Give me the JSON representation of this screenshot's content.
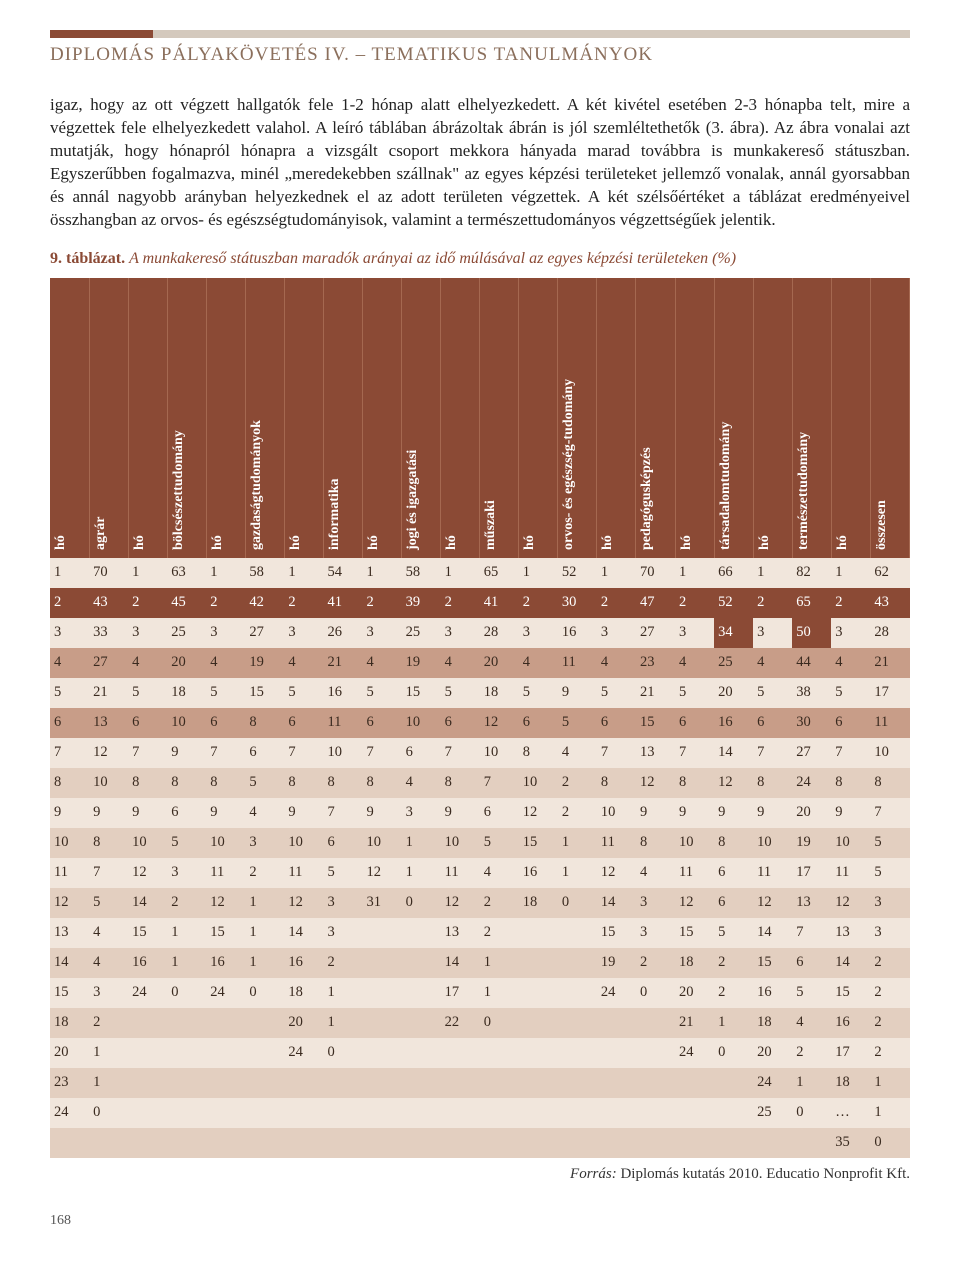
{
  "header": "DIPLOMÁS PÁLYAKÖVETÉS IV. – TEMATIKUS TANULMÁNYOK",
  "paragraph": "igaz, hogy az ott végzett hallgatók fele 1-2 hónap alatt elhelyezkedett. A két kivétel esetében 2-3 hónapba telt, mire a végzettek fele elhelyezkedett valahol. A leíró táblában ábrázoltak ábrán is jól szemléltethetők (3. ábra). Az ábra vonalai azt mutatják, hogy hónapról hónapra a vizsgált csoport mekkora hányada marad továbbra is munkakereső státuszban. Egyszerűbben fogalmazva, minél „meredekebben szállnak\" az egyes képzési területeket jellemző vonalak, annál gyorsabban és annál nagyobb arányban helyezkednek el az adott területen végzettek. A két szélsőértéket a táblázat eredményeivel összhangban az orvos- és egészségtudományisok, valamint a természettudományos végzettségűek jelentik.",
  "caption_num": "9. táblázat.",
  "caption_title": "A munkakereső státuszban maradók arányai az idő múlásával az egyes képzési területeken (%)",
  "columns": [
    "hó",
    "agrár",
    "hó",
    "bölcsészettudomány",
    "hó",
    "gazdaságtudományok",
    "hó",
    "informatika",
    "hó",
    "jogi és igazgatási",
    "hó",
    "műszaki",
    "hó",
    "orvos- és egészség-tudomány",
    "hó",
    "pedagógusképzés",
    "hó",
    "társadalomtudomány",
    "hó",
    "természettudomány",
    "hó",
    "összesen"
  ],
  "palette": {
    "dark": "#8b4a35",
    "mid": "#c89d88",
    "light": "#e3cfc0",
    "pale": "#f1e6dc"
  },
  "rows": [
    {
      "cells": [
        "1",
        "70",
        "1",
        "63",
        "1",
        "58",
        "1",
        "54",
        "1",
        "58",
        "1",
        "65",
        "1",
        "52",
        "1",
        "70",
        "1",
        "66",
        "1",
        "82",
        "1",
        "62"
      ],
      "shades": [
        "p",
        "p",
        "p",
        "p",
        "p",
        "p",
        "p",
        "p",
        "p",
        "p",
        "p",
        "p",
        "p",
        "p",
        "p",
        "p",
        "p",
        "p",
        "p",
        "p",
        "p",
        "p"
      ]
    },
    {
      "cells": [
        "2",
        "43",
        "2",
        "45",
        "2",
        "42",
        "2",
        "41",
        "2",
        "39",
        "2",
        "41",
        "2",
        "30",
        "2",
        "47",
        "2",
        "52",
        "2",
        "65",
        "2",
        "43"
      ],
      "shades": [
        "d",
        "d",
        "d",
        "d",
        "d",
        "d",
        "d",
        "d",
        "d",
        "d",
        "d",
        "d",
        "d",
        "d",
        "d",
        "d",
        "d",
        "d",
        "d",
        "d",
        "d",
        "d"
      ]
    },
    {
      "cells": [
        "3",
        "33",
        "3",
        "25",
        "3",
        "27",
        "3",
        "26",
        "3",
        "25",
        "3",
        "28",
        "3",
        "16",
        "3",
        "27",
        "3",
        "34",
        "3",
        "50",
        "3",
        "28"
      ],
      "shades": [
        "p",
        "p",
        "p",
        "p",
        "p",
        "p",
        "p",
        "p",
        "p",
        "p",
        "p",
        "p",
        "p",
        "p",
        "p",
        "p",
        "p",
        "d",
        "p",
        "d",
        "p",
        "p"
      ]
    },
    {
      "cells": [
        "4",
        "27",
        "4",
        "20",
        "4",
        "19",
        "4",
        "21",
        "4",
        "19",
        "4",
        "20",
        "4",
        "11",
        "4",
        "23",
        "4",
        "25",
        "4",
        "44",
        "4",
        "21"
      ],
      "shades": [
        "m",
        "m",
        "m",
        "m",
        "m",
        "m",
        "m",
        "m",
        "m",
        "m",
        "m",
        "m",
        "m",
        "m",
        "m",
        "m",
        "m",
        "m",
        "m",
        "m",
        "m",
        "m"
      ]
    },
    {
      "cells": [
        "5",
        "21",
        "5",
        "18",
        "5",
        "15",
        "5",
        "16",
        "5",
        "15",
        "5",
        "18",
        "5",
        "9",
        "5",
        "21",
        "5",
        "20",
        "5",
        "38",
        "5",
        "17"
      ],
      "shades": [
        "p",
        "p",
        "p",
        "p",
        "p",
        "p",
        "p",
        "p",
        "p",
        "p",
        "p",
        "p",
        "p",
        "p",
        "p",
        "p",
        "p",
        "p",
        "p",
        "p",
        "p",
        "p"
      ]
    },
    {
      "cells": [
        "6",
        "13",
        "6",
        "10",
        "6",
        "8",
        "6",
        "11",
        "6",
        "10",
        "6",
        "12",
        "6",
        "5",
        "6",
        "15",
        "6",
        "16",
        "6",
        "30",
        "6",
        "11"
      ],
      "shades": [
        "m",
        "m",
        "m",
        "m",
        "m",
        "m",
        "m",
        "m",
        "m",
        "m",
        "m",
        "m",
        "m",
        "m",
        "m",
        "m",
        "m",
        "m",
        "m",
        "m",
        "m",
        "m"
      ]
    },
    {
      "cells": [
        "7",
        "12",
        "7",
        "9",
        "7",
        "6",
        "7",
        "10",
        "7",
        "6",
        "7",
        "10",
        "8",
        "4",
        "7",
        "13",
        "7",
        "14",
        "7",
        "27",
        "7",
        "10"
      ],
      "shades": [
        "p",
        "p",
        "p",
        "p",
        "p",
        "p",
        "p",
        "p",
        "p",
        "p",
        "p",
        "p",
        "p",
        "p",
        "p",
        "p",
        "p",
        "p",
        "p",
        "p",
        "p",
        "p"
      ]
    },
    {
      "cells": [
        "8",
        "10",
        "8",
        "8",
        "8",
        "5",
        "8",
        "8",
        "8",
        "4",
        "8",
        "7",
        "10",
        "2",
        "8",
        "12",
        "8",
        "12",
        "8",
        "24",
        "8",
        "8"
      ],
      "shades": [
        "l",
        "l",
        "l",
        "l",
        "l",
        "l",
        "l",
        "l",
        "l",
        "l",
        "l",
        "l",
        "l",
        "l",
        "l",
        "l",
        "l",
        "l",
        "l",
        "l",
        "l",
        "l"
      ]
    },
    {
      "cells": [
        "9",
        "9",
        "9",
        "6",
        "9",
        "4",
        "9",
        "7",
        "9",
        "3",
        "9",
        "6",
        "12",
        "2",
        "10",
        "9",
        "9",
        "9",
        "9",
        "20",
        "9",
        "7"
      ],
      "shades": [
        "p",
        "p",
        "p",
        "p",
        "p",
        "p",
        "p",
        "p",
        "p",
        "p",
        "p",
        "p",
        "p",
        "p",
        "p",
        "p",
        "p",
        "p",
        "p",
        "p",
        "p",
        "p"
      ]
    },
    {
      "cells": [
        "10",
        "8",
        "10",
        "5",
        "10",
        "3",
        "10",
        "6",
        "10",
        "1",
        "10",
        "5",
        "15",
        "1",
        "11",
        "8",
        "10",
        "8",
        "10",
        "19",
        "10",
        "5"
      ],
      "shades": [
        "l",
        "l",
        "l",
        "l",
        "l",
        "l",
        "l",
        "l",
        "l",
        "l",
        "l",
        "l",
        "l",
        "l",
        "l",
        "l",
        "l",
        "l",
        "l",
        "l",
        "l",
        "l"
      ]
    },
    {
      "cells": [
        "11",
        "7",
        "12",
        "3",
        "11",
        "2",
        "11",
        "5",
        "12",
        "1",
        "11",
        "4",
        "16",
        "1",
        "12",
        "4",
        "11",
        "6",
        "11",
        "17",
        "11",
        "5"
      ],
      "shades": [
        "p",
        "p",
        "p",
        "p",
        "p",
        "p",
        "p",
        "p",
        "p",
        "p",
        "p",
        "p",
        "p",
        "p",
        "p",
        "p",
        "p",
        "p",
        "p",
        "p",
        "p",
        "p"
      ]
    },
    {
      "cells": [
        "12",
        "5",
        "14",
        "2",
        "12",
        "1",
        "12",
        "3",
        "31",
        "0",
        "12",
        "2",
        "18",
        "0",
        "14",
        "3",
        "12",
        "6",
        "12",
        "13",
        "12",
        "3"
      ],
      "shades": [
        "l",
        "l",
        "l",
        "l",
        "l",
        "l",
        "l",
        "l",
        "l",
        "l",
        "l",
        "l",
        "l",
        "l",
        "l",
        "l",
        "l",
        "l",
        "l",
        "l",
        "l",
        "l"
      ]
    },
    {
      "cells": [
        "13",
        "4",
        "15",
        "1",
        "15",
        "1",
        "14",
        "3",
        "",
        "",
        "13",
        "2",
        "",
        "",
        "15",
        "3",
        "15",
        "5",
        "14",
        "7",
        "13",
        "3"
      ],
      "shades": [
        "p",
        "p",
        "p",
        "p",
        "p",
        "p",
        "p",
        "p",
        "p",
        "p",
        "p",
        "p",
        "p",
        "p",
        "p",
        "p",
        "p",
        "p",
        "p",
        "p",
        "p",
        "p"
      ]
    },
    {
      "cells": [
        "14",
        "4",
        "16",
        "1",
        "16",
        "1",
        "16",
        "2",
        "",
        "",
        "14",
        "1",
        "",
        "",
        "19",
        "2",
        "18",
        "2",
        "15",
        "6",
        "14",
        "2"
      ],
      "shades": [
        "l",
        "l",
        "l",
        "l",
        "l",
        "l",
        "l",
        "l",
        "l",
        "l",
        "l",
        "l",
        "l",
        "l",
        "l",
        "l",
        "l",
        "l",
        "l",
        "l",
        "l",
        "l"
      ]
    },
    {
      "cells": [
        "15",
        "3",
        "24",
        "0",
        "24",
        "0",
        "18",
        "1",
        "",
        "",
        "17",
        "1",
        "",
        "",
        "24",
        "0",
        "20",
        "2",
        "16",
        "5",
        "15",
        "2"
      ],
      "shades": [
        "p",
        "p",
        "p",
        "p",
        "p",
        "p",
        "p",
        "p",
        "p",
        "p",
        "p",
        "p",
        "p",
        "p",
        "p",
        "p",
        "p",
        "p",
        "p",
        "p",
        "p",
        "p"
      ]
    },
    {
      "cells": [
        "18",
        "2",
        "",
        "",
        "",
        "",
        "20",
        "1",
        "",
        "",
        "22",
        "0",
        "",
        "",
        "",
        "",
        "21",
        "1",
        "18",
        "4",
        "16",
        "2"
      ],
      "shades": [
        "l",
        "l",
        "l",
        "l",
        "l",
        "l",
        "l",
        "l",
        "l",
        "l",
        "l",
        "l",
        "l",
        "l",
        "l",
        "l",
        "l",
        "l",
        "l",
        "l",
        "l",
        "l"
      ]
    },
    {
      "cells": [
        "20",
        "1",
        "",
        "",
        "",
        "",
        "24",
        "0",
        "",
        "",
        "",
        "",
        "",
        "",
        "",
        "",
        "24",
        "0",
        "20",
        "2",
        "17",
        "2"
      ],
      "shades": [
        "p",
        "p",
        "p",
        "p",
        "p",
        "p",
        "p",
        "p",
        "p",
        "p",
        "p",
        "p",
        "p",
        "p",
        "p",
        "p",
        "p",
        "p",
        "p",
        "p",
        "p",
        "p"
      ]
    },
    {
      "cells": [
        "23",
        "1",
        "",
        "",
        "",
        "",
        "",
        "",
        "",
        "",
        "",
        "",
        "",
        "",
        "",
        "",
        "",
        "",
        "24",
        "1",
        "18",
        "1"
      ],
      "shades": [
        "l",
        "l",
        "l",
        "l",
        "l",
        "l",
        "l",
        "l",
        "l",
        "l",
        "l",
        "l",
        "l",
        "l",
        "l",
        "l",
        "l",
        "l",
        "l",
        "l",
        "l",
        "l"
      ]
    },
    {
      "cells": [
        "24",
        "0",
        "",
        "",
        "",
        "",
        "",
        "",
        "",
        "",
        "",
        "",
        "",
        "",
        "",
        "",
        "",
        "",
        "25",
        "0",
        "…",
        "1"
      ],
      "shades": [
        "p",
        "p",
        "p",
        "p",
        "p",
        "p",
        "p",
        "p",
        "p",
        "p",
        "p",
        "p",
        "p",
        "p",
        "p",
        "p",
        "p",
        "p",
        "p",
        "p",
        "p",
        "p"
      ]
    },
    {
      "cells": [
        "",
        "",
        "",
        "",
        "",
        "",
        "",
        "",
        "",
        "",
        "",
        "",
        "",
        "",
        "",
        "",
        "",
        "",
        "",
        "",
        "35",
        "0"
      ],
      "shades": [
        "l",
        "l",
        "l",
        "l",
        "l",
        "l",
        "l",
        "l",
        "l",
        "l",
        "l",
        "l",
        "l",
        "l",
        "l",
        "l",
        "l",
        "l",
        "l",
        "l",
        "l",
        "l"
      ]
    }
  ],
  "source_label": "Forrás:",
  "source_text": " Diplomás kutatás 2010. Educatio Nonprofit Kft.",
  "page_num": "168"
}
